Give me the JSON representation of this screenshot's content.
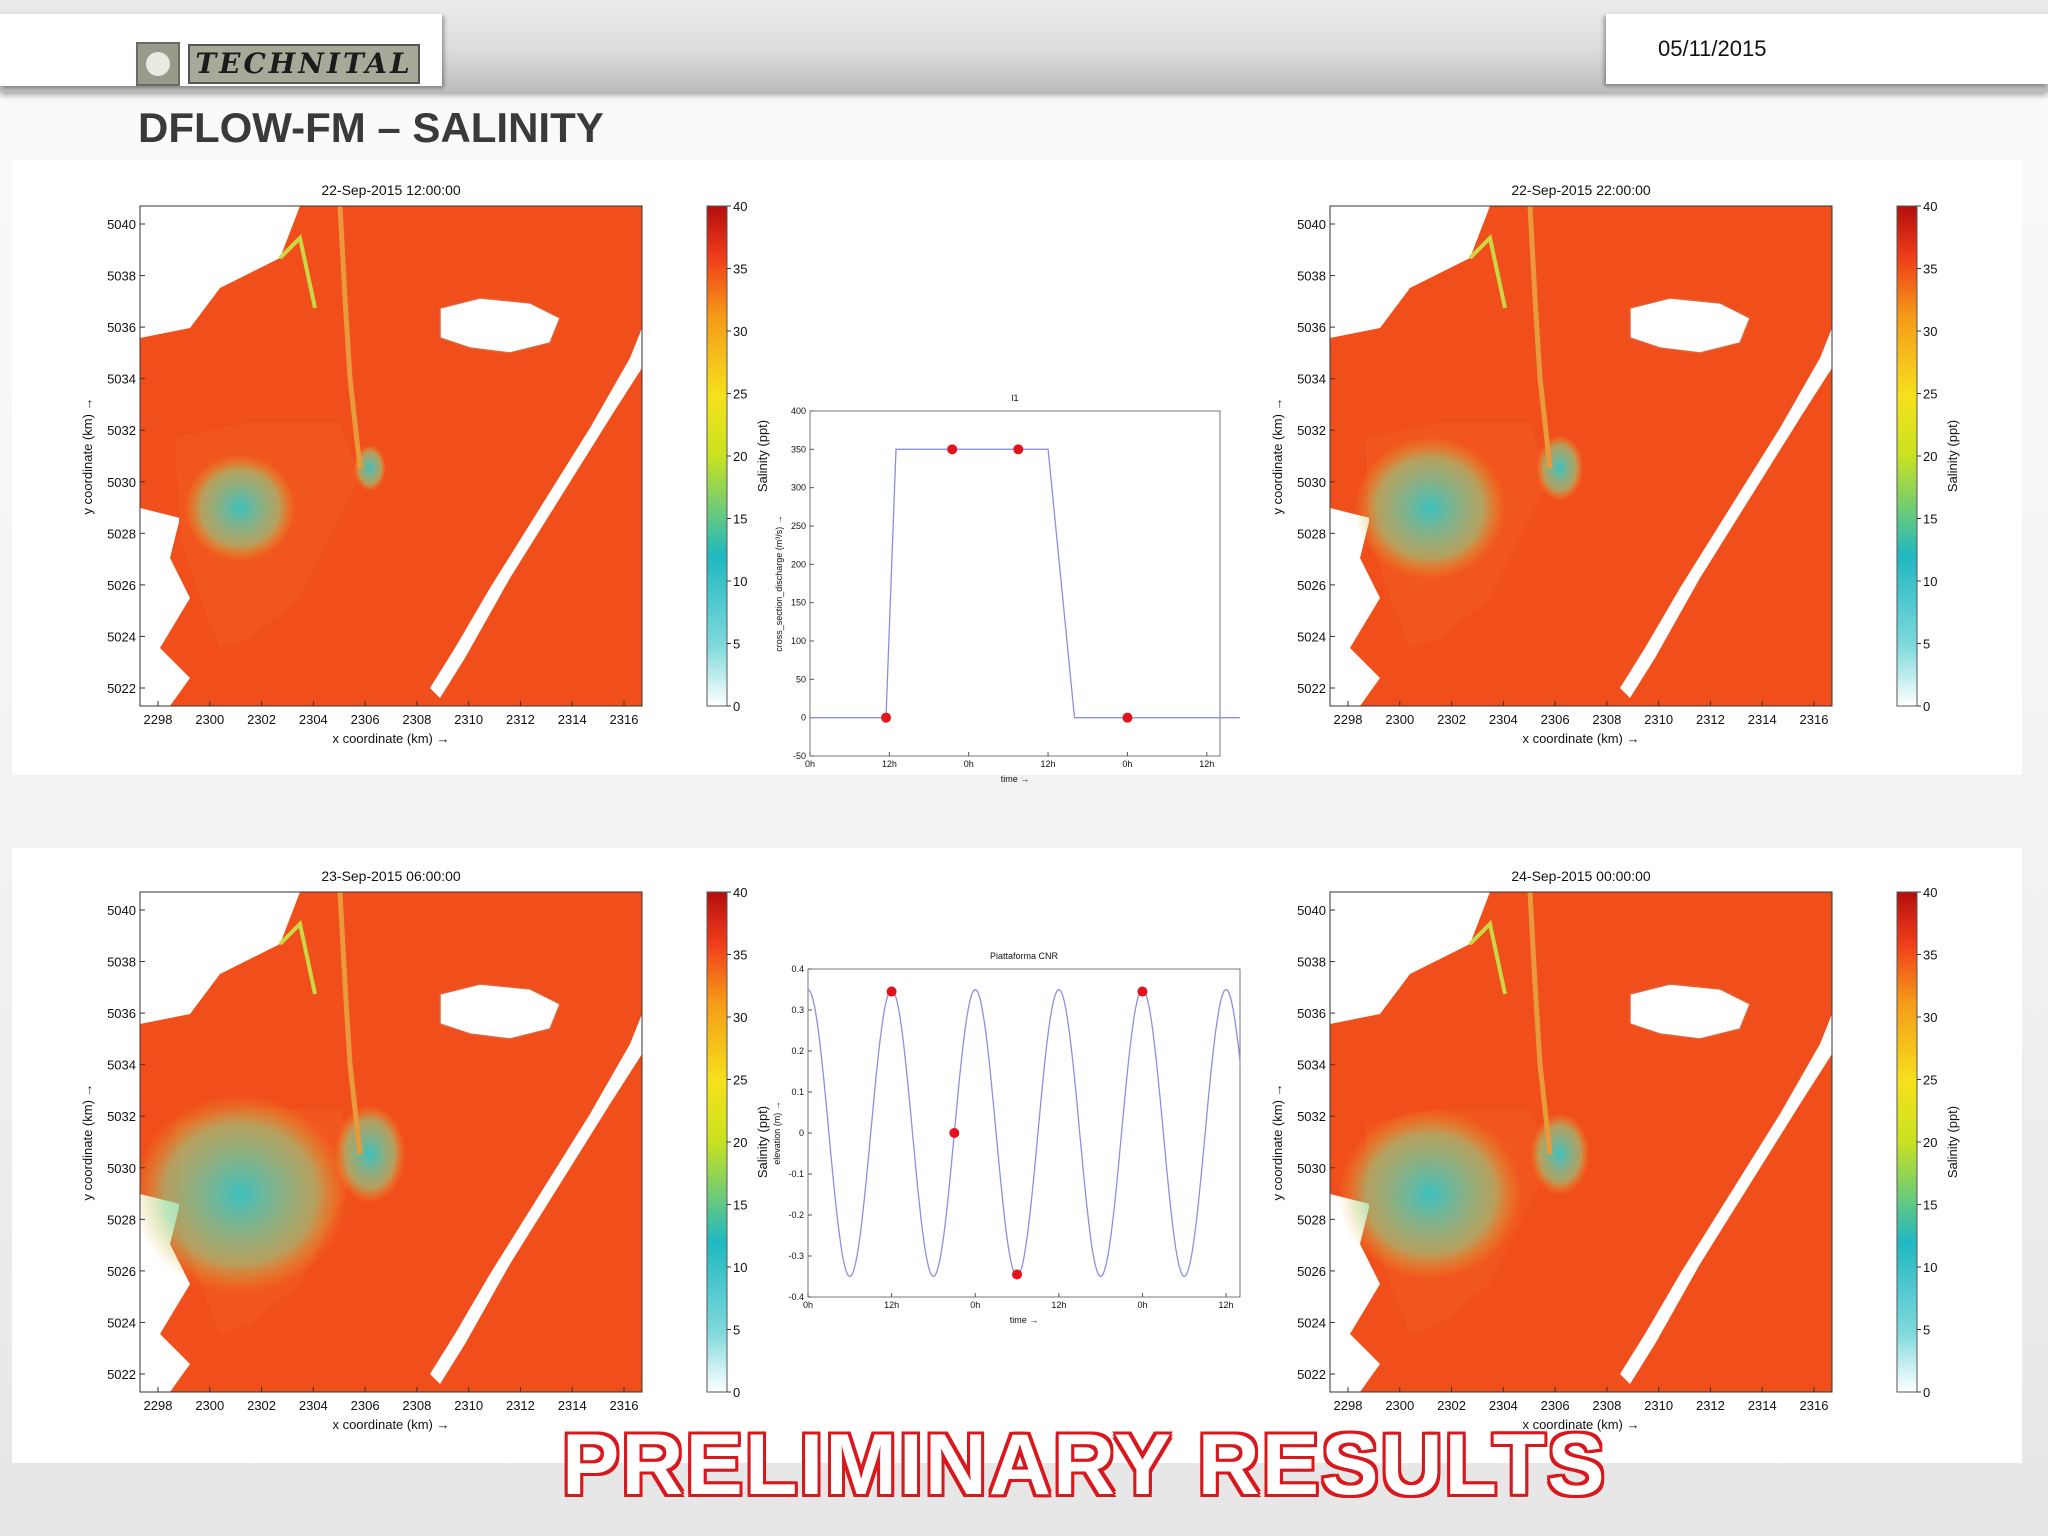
{
  "header": {
    "logo_text": "TECHNITAL",
    "date": "05/11/2015",
    "slide_title": "DFLOW-FM – SALINITY"
  },
  "colors": {
    "salinity_high": "#f04e1b",
    "salinity_low": "#33c6c8",
    "marker": "#e0141a",
    "curve": "#8f8fe0",
    "preliminary_outline": "#d8181d"
  },
  "maps": [
    {
      "title": "22-Sep-2015 12:00:00",
      "freshwater_extent": 0.2
    },
    {
      "title": "22-Sep-2015 22:00:00",
      "freshwater_extent": 0.45
    },
    {
      "title": "23-Sep-2015 06:00:00",
      "freshwater_extent": 0.85
    },
    {
      "title": "24-Sep-2015 00:00:00",
      "freshwater_extent": 0.65
    }
  ],
  "map_axes": {
    "xlabel": "x coordinate (km) →",
    "ylabel": "y coordinate (km) →",
    "x_ticks": [
      "2298",
      "2300",
      "2302",
      "2304",
      "2306",
      "2308",
      "2310",
      "2312",
      "2314",
      "2316"
    ],
    "y_ticks": [
      "5040",
      "5038",
      "5036",
      "5034",
      "5032",
      "5030",
      "5028",
      "5026",
      "5024",
      "5022"
    ]
  },
  "colorbar": {
    "label": "Salinity (ppt)",
    "ticks": [
      "40",
      "35",
      "30",
      "25",
      "20",
      "15",
      "10",
      "5",
      "0"
    ],
    "range": [
      0,
      40
    ]
  },
  "chart_data": [
    {
      "type": "line",
      "title": "l1",
      "xlabel": "time →",
      "ylabel": "cross_section_discharge (m³/s) →",
      "x_tick_labels": [
        "0h",
        "12h",
        "0h",
        "12h",
        "0h",
        "12h"
      ],
      "x_hours": [
        0,
        12,
        24,
        36,
        48,
        60
      ],
      "ylim": [
        -50,
        400
      ],
      "y_ticks": [
        -50,
        0,
        50,
        100,
        150,
        200,
        250,
        300,
        350,
        400
      ],
      "series": [
        {
          "x": [
            0,
            11.5,
            13,
            21,
            36,
            40,
            65
          ],
          "y": [
            0,
            0,
            350,
            350,
            350,
            0,
            0
          ]
        }
      ],
      "markers": [
        {
          "x": 11.5,
          "y": 0
        },
        {
          "x": 21.5,
          "y": 350
        },
        {
          "x": 31.5,
          "y": 350
        },
        {
          "x": 48,
          "y": 0
        }
      ]
    },
    {
      "type": "line",
      "title": "Piattaforma CNR",
      "xlabel": "time →",
      "ylabel": "elevation (m) →",
      "x_tick_labels": [
        "0h",
        "12h",
        "0h",
        "12h",
        "0h",
        "12h"
      ],
      "x_hours": [
        0,
        12,
        24,
        36,
        48,
        60
      ],
      "ylim": [
        -0.4,
        0.4
      ],
      "y_ticks": [
        -0.4,
        -0.3,
        -0.2,
        -0.1,
        0,
        0.1,
        0.2,
        0.3,
        0.4
      ],
      "series": [
        {
          "amplitude": 0.35,
          "period_hours": 12,
          "peak_hour": 12,
          "x_range": [
            0,
            62
          ]
        }
      ],
      "markers": [
        {
          "x": 12,
          "y": 0.345
        },
        {
          "x": 21,
          "y": 0
        },
        {
          "x": 30,
          "y": -0.345
        },
        {
          "x": 48,
          "y": 0.345
        }
      ]
    }
  ],
  "banner": "PRELIMINARY RESULTS"
}
